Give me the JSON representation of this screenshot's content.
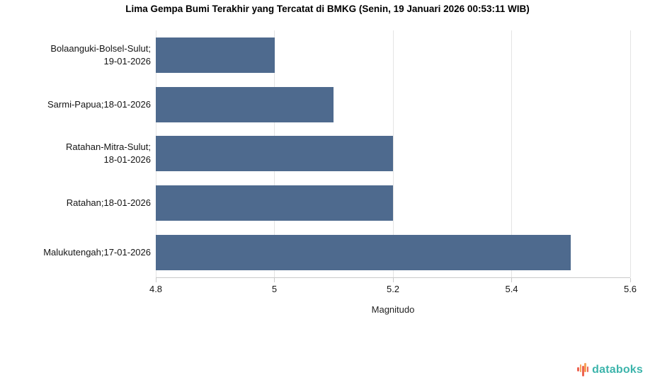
{
  "title": "Lima Gempa Bumi Terakhir yang Tercatat di BMKG (Senin, 19 Januari 2026 00:53:11 WIB)",
  "chart_data": {
    "type": "bar",
    "orientation": "horizontal",
    "title": "Lima Gempa Bumi Terakhir yang Tercatat di BMKG (Senin, 19 Januari 2026 00:53:11 WIB)",
    "categories": [
      [
        "Bolaanguki-Bolsel-Sulut;",
        "19-01-2026"
      ],
      [
        "Sarmi-Papua;18-01-2026"
      ],
      [
        "Ratahan-Mitra-Sulut;",
        "18-01-2026"
      ],
      [
        "Ratahan;18-01-2026"
      ],
      [
        "Malukutengah;17-01-2026"
      ]
    ],
    "values": [
      5.0,
      5.1,
      5.2,
      5.2,
      5.5
    ],
    "xlabel": "Magnitudo",
    "ylabel": "",
    "xlim": [
      4.8,
      5.6
    ],
    "xticks": [
      4.8,
      5.0,
      5.2,
      5.4,
      5.6
    ],
    "xtick_labels": [
      "4.8",
      "5",
      "5.2",
      "5.4",
      "5.6"
    ],
    "grid": true,
    "legend": false
  },
  "colors": {
    "bar": "#4e6a8e",
    "gridline": "#e4e4e4",
    "axis": "#c9c9c9",
    "brand_teal": "#3cb4ab",
    "brand_orange": "#f6a35a",
    "brand_coral": "#ed6352"
  },
  "footer": {
    "brand": "databoks"
  }
}
